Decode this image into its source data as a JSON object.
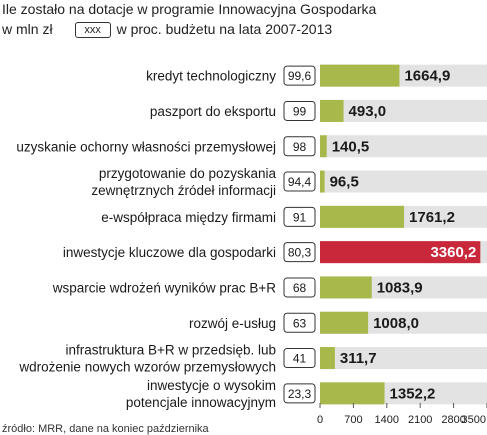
{
  "header": {
    "line1": "Ile zostało na dotacje w programie Innowacyjna Gospodarka",
    "line2_unit": "w mln zł",
    "legend_box": "xxx",
    "line2_rest": "w proc. budżetu na lata 2007-2013"
  },
  "source": "źródło: MRR, dane na koniec października",
  "colors": {
    "bar": "#a8b84a",
    "bar_highlight": "#c8283a",
    "stripe": "#e3e3e3"
  },
  "chart_data": {
    "type": "bar",
    "orientation": "horizontal",
    "categories": [
      [
        "kredyt technologiczny"
      ],
      [
        "paszport do eksportu"
      ],
      [
        "uzyskanie ochorny własności przemysłowej"
      ],
      [
        "przygotowanie do pozyskania",
        "zewnętrznych źródeł informacji"
      ],
      [
        "e-współpraca między firmami"
      ],
      [
        "inwestycje kluczowe dla gospodarki"
      ],
      [
        "wsparcie wdrożeń wyników prac B+R"
      ],
      [
        "rozwój e-usług"
      ],
      [
        "infrastruktura B+R w przedsięb. lub",
        "wdrożenie nowych wzorów przemysłowych"
      ],
      [
        "inwestycje o wysokim",
        "potencjale innowacyjnym"
      ]
    ],
    "values": [
      1664.9,
      493.0,
      140.5,
      96.5,
      1761.2,
      3360.2,
      1083.9,
      1008.0,
      311.7,
      1352.2
    ],
    "value_labels": [
      "1664,9",
      "493,0",
      "140,5",
      "96,5",
      "1761,2",
      "3360,2",
      "1083,9",
      "1008,0",
      "311,7",
      "1352,2"
    ],
    "percent_labels": [
      "99,6",
      "99",
      "98",
      "94,4",
      "91",
      "80,3",
      "68",
      "63",
      "41",
      "23,3"
    ],
    "highlight_index": 5,
    "xlim": [
      0,
      3500
    ],
    "xticks": [
      0,
      700,
      1400,
      2100,
      2800,
      3500
    ],
    "grid": false
  }
}
